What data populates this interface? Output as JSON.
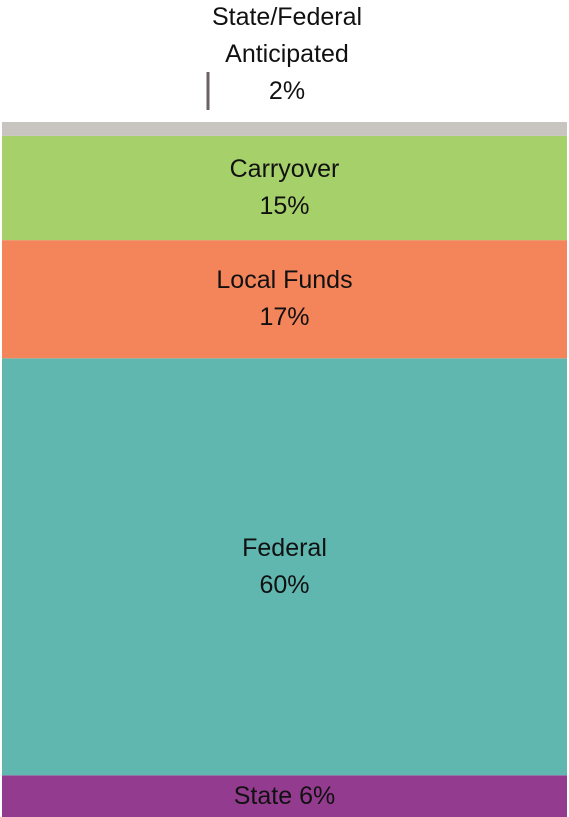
{
  "chart_data": {
    "type": "bar",
    "stacked": true,
    "series": [
      {
        "name": "State",
        "color": "#933b8f",
        "values": [
          6
        ],
        "value_labels": [
          "6%"
        ]
      },
      {
        "name": "Federal",
        "color": "#5fb7b0",
        "values": [
          60
        ],
        "value_labels": [
          "60%"
        ]
      },
      {
        "name": "Local Funds",
        "color": "#f4845a",
        "values": [
          17
        ],
        "value_labels": [
          "17%"
        ]
      },
      {
        "name": "Carryover",
        "color": "#a6d06a",
        "values": [
          15
        ],
        "value_labels": [
          "15%"
        ]
      },
      {
        "name": "State/Federal Anticipated",
        "color": "#c8c4bf",
        "values": [
          2
        ],
        "value_labels": [
          "2%"
        ]
      }
    ]
  }
}
